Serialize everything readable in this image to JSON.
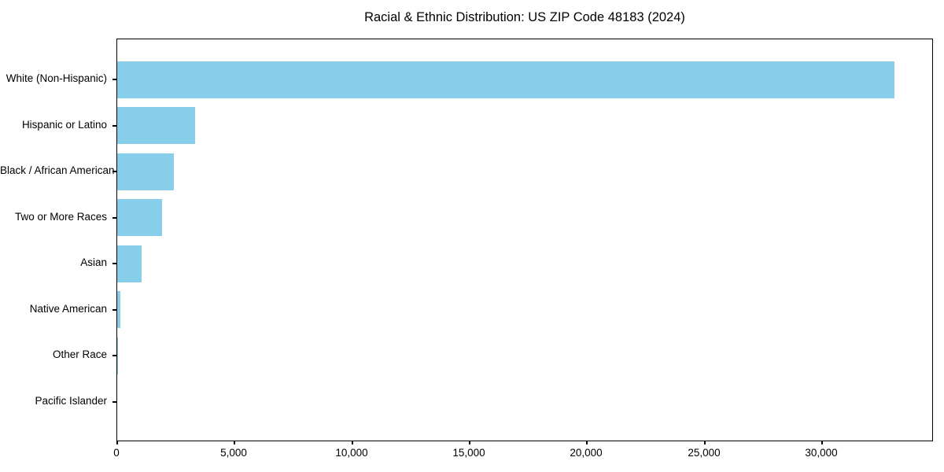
{
  "title": "Racial & Ethnic Distribution: US ZIP Code 48183 (2024)",
  "colors": {
    "bar": "#87CEEB",
    "axis": "#000000",
    "text": "#000000",
    "background": "#FFFFFF"
  },
  "chart_data": {
    "type": "bar",
    "orientation": "horizontal",
    "title": "Racial & Ethnic Distribution: US ZIP Code 48183 (2024)",
    "categories": [
      "White (Non-Hispanic)",
      "Hispanic or Latino",
      "Black / African American",
      "Two or More Races",
      "Asian",
      "Native American",
      "Other Race",
      "Pacific Islander"
    ],
    "values": [
      33100,
      3330,
      2420,
      1900,
      1050,
      140,
      30,
      10
    ],
    "xlabel": "",
    "ylabel": "",
    "xlim": [
      0,
      34760
    ],
    "x_ticks": [
      0,
      5000,
      10000,
      15000,
      20000,
      25000,
      30000
    ],
    "x_tick_labels": [
      "0",
      "5,000",
      "10,000",
      "15,000",
      "20,000",
      "25,000",
      "30,000"
    ],
    "bar_color": "#87CEEB",
    "grid": false,
    "sort": "descending"
  }
}
